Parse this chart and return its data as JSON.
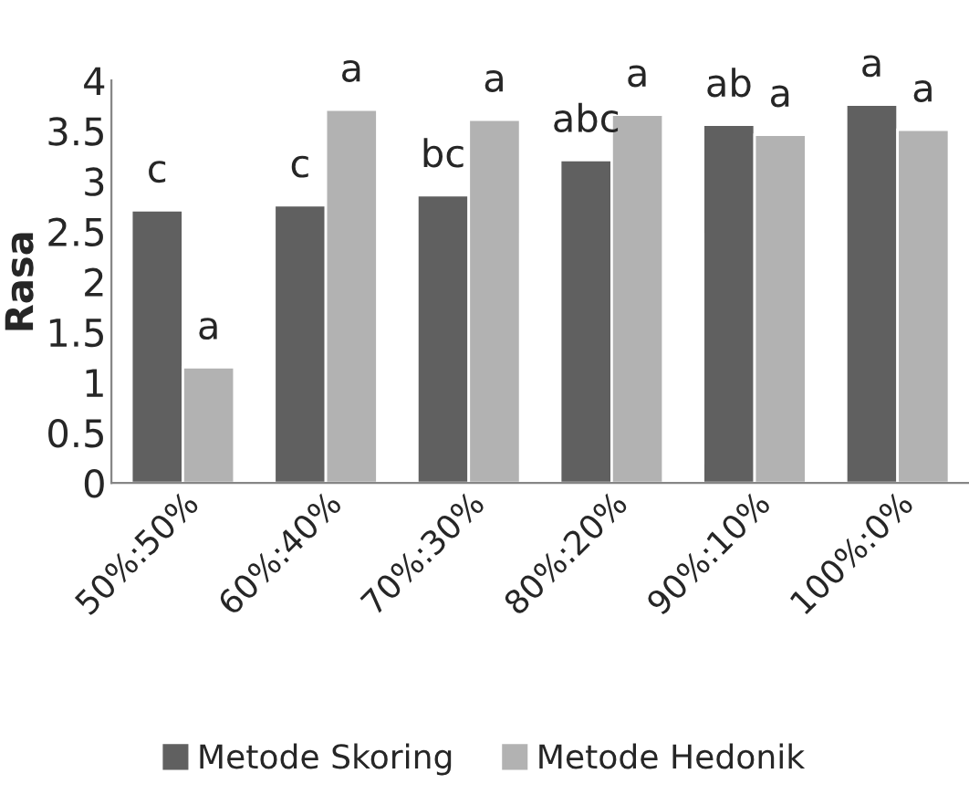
{
  "chart_data": {
    "type": "bar",
    "ylabel": "Rasa",
    "categories": [
      "50%:50%",
      "60%:40%",
      "70%:30%",
      "80%:20%",
      "90%:10%",
      "100%:0%"
    ],
    "series": [
      {
        "name": "Metode Skoring",
        "color": "#606060",
        "values": [
          2.71,
          2.76,
          2.86,
          3.21,
          3.56,
          3.76
        ],
        "value_labels": [
          "c",
          "c",
          "bc",
          "abc",
          "ab",
          "a"
        ]
      },
      {
        "name": "Metode Hedonik",
        "color": "#b2b2b2",
        "values": [
          1.15,
          3.71,
          3.61,
          3.66,
          3.46,
          3.51
        ],
        "value_labels": [
          "a",
          "a",
          "a",
          "a",
          "a",
          "a"
        ]
      }
    ],
    "ylim": [
      0,
      4
    ],
    "yticks": [
      0,
      0.5,
      1,
      1.5,
      2,
      2.5,
      3,
      3.5,
      4
    ],
    "grid": false,
    "legend": "bottom"
  }
}
